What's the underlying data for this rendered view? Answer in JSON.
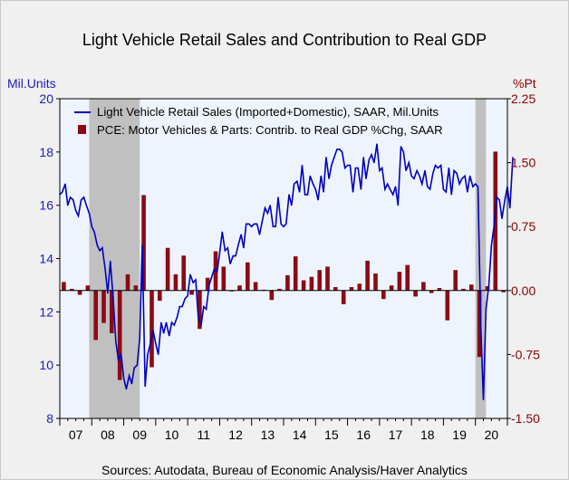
{
  "title": "Light Vehicle Retail Sales and Contribution to Real GDP",
  "source": "Sources:  Autodata, Bureau of Economic Analysis/Haver Analytics",
  "chart_data": {
    "type": "line+bar",
    "title": "Light Vehicle Retail Sales and Contribution to Real GDP",
    "left_axis": {
      "unit": "Mil.Units",
      "ylim": [
        8,
        20
      ],
      "ticks": [
        "8",
        "10",
        "12",
        "14",
        "16",
        "18",
        "20"
      ],
      "color": "#1c1cc0"
    },
    "right_axis": {
      "unit": "%Pt",
      "ylim": [
        -1.5,
        2.25
      ],
      "ticks": [
        "-1.50",
        "-0.75",
        "0.00",
        "0.75",
        "1.50",
        "2.25"
      ],
      "color": "#8b0000"
    },
    "x_ticks": [
      "07",
      "08",
      "09",
      "10",
      "11",
      "12",
      "13",
      "14",
      "15",
      "16",
      "17",
      "18",
      "19",
      "20"
    ],
    "x_range": [
      2007.0,
      2021.0
    ],
    "legend": {
      "placement": "top-left",
      "items": [
        {
          "label": "Light Vehicle Retail Sales (Imported+Domestic), SAAR, Mil.Units",
          "color": "#0000c0",
          "kind": "line"
        },
        {
          "label": "PCE: Motor Vehicles & Parts: Contrib. to Real GDP %Chg, SAAR",
          "color": "#8b0a14",
          "kind": "bar"
        }
      ]
    },
    "recessions": [
      [
        2007.92,
        2009.5
      ],
      [
        2020.0,
        2020.33
      ]
    ],
    "series": [
      {
        "name": "Light Vehicle Retail Sales (Imported+Domestic), SAAR, Mil.Units",
        "axis": "left",
        "color": "#0000c0",
        "points": [
          [
            2007.0,
            16.4
          ],
          [
            2007.08,
            16.5
          ],
          [
            2007.17,
            16.8
          ],
          [
            2007.25,
            16.0
          ],
          [
            2007.33,
            16.3
          ],
          [
            2007.42,
            16.2
          ],
          [
            2007.5,
            15.8
          ],
          [
            2007.58,
            15.6
          ],
          [
            2007.67,
            16.2
          ],
          [
            2007.75,
            16.3
          ],
          [
            2007.83,
            16.0
          ],
          [
            2007.92,
            15.7
          ],
          [
            2008.0,
            15.2
          ],
          [
            2008.08,
            15.0
          ],
          [
            2008.17,
            14.5
          ],
          [
            2008.25,
            14.3
          ],
          [
            2008.33,
            14.4
          ],
          [
            2008.42,
            13.6
          ],
          [
            2008.5,
            12.7
          ],
          [
            2008.58,
            13.9
          ],
          [
            2008.67,
            12.5
          ],
          [
            2008.75,
            10.9
          ],
          [
            2008.83,
            10.2
          ],
          [
            2008.92,
            10.4
          ],
          [
            2009.0,
            9.5
          ],
          [
            2009.08,
            9.1
          ],
          [
            2009.17,
            9.6
          ],
          [
            2009.25,
            9.3
          ],
          [
            2009.33,
            9.9
          ],
          [
            2009.42,
            10.0
          ],
          [
            2009.5,
            11.0
          ],
          [
            2009.58,
            14.5
          ],
          [
            2009.67,
            9.2
          ],
          [
            2009.75,
            10.4
          ],
          [
            2009.83,
            10.8
          ],
          [
            2009.92,
            11.3
          ],
          [
            2010.0,
            10.8
          ],
          [
            2010.08,
            10.4
          ],
          [
            2010.17,
            11.6
          ],
          [
            2010.25,
            11.2
          ],
          [
            2010.33,
            11.6
          ],
          [
            2010.42,
            11.1
          ],
          [
            2010.5,
            11.6
          ],
          [
            2010.58,
            11.5
          ],
          [
            2010.67,
            11.8
          ],
          [
            2010.75,
            12.2
          ],
          [
            2010.83,
            12.2
          ],
          [
            2010.92,
            12.5
          ],
          [
            2011.0,
            12.6
          ],
          [
            2011.08,
            13.4
          ],
          [
            2011.17,
            13.1
          ],
          [
            2011.25,
            13.2
          ],
          [
            2011.33,
            11.8
          ],
          [
            2011.42,
            11.5
          ],
          [
            2011.5,
            12.2
          ],
          [
            2011.58,
            12.1
          ],
          [
            2011.67,
            13.0
          ],
          [
            2011.75,
            13.3
          ],
          [
            2011.83,
            13.6
          ],
          [
            2011.92,
            13.5
          ],
          [
            2012.0,
            14.2
          ],
          [
            2012.08,
            15.0
          ],
          [
            2012.17,
            14.3
          ],
          [
            2012.25,
            14.4
          ],
          [
            2012.33,
            13.8
          ],
          [
            2012.42,
            14.1
          ],
          [
            2012.5,
            14.1
          ],
          [
            2012.58,
            14.5
          ],
          [
            2012.67,
            14.9
          ],
          [
            2012.75,
            14.4
          ],
          [
            2012.83,
            15.3
          ],
          [
            2012.92,
            15.3
          ],
          [
            2013.0,
            15.2
          ],
          [
            2013.08,
            15.3
          ],
          [
            2013.17,
            15.3
          ],
          [
            2013.25,
            14.9
          ],
          [
            2013.33,
            15.4
          ],
          [
            2013.42,
            15.9
          ],
          [
            2013.5,
            15.7
          ],
          [
            2013.58,
            16.0
          ],
          [
            2013.67,
            15.2
          ],
          [
            2013.75,
            15.2
          ],
          [
            2013.83,
            16.3
          ],
          [
            2013.92,
            15.3
          ],
          [
            2014.0,
            15.2
          ],
          [
            2014.08,
            15.3
          ],
          [
            2014.17,
            16.4
          ],
          [
            2014.25,
            16.0
          ],
          [
            2014.33,
            16.8
          ],
          [
            2014.42,
            16.9
          ],
          [
            2014.5,
            16.5
          ],
          [
            2014.58,
            17.5
          ],
          [
            2014.67,
            16.4
          ],
          [
            2014.75,
            16.4
          ],
          [
            2014.83,
            17.1
          ],
          [
            2014.92,
            16.8
          ],
          [
            2015.0,
            16.6
          ],
          [
            2015.08,
            16.2
          ],
          [
            2015.17,
            17.1
          ],
          [
            2015.25,
            16.5
          ],
          [
            2015.33,
            17.8
          ],
          [
            2015.42,
            17.0
          ],
          [
            2015.5,
            17.5
          ],
          [
            2015.58,
            17.8
          ],
          [
            2015.67,
            18.1
          ],
          [
            2015.75,
            18.1
          ],
          [
            2015.83,
            18.0
          ],
          [
            2015.92,
            17.4
          ],
          [
            2016.0,
            17.5
          ],
          [
            2016.08,
            17.5
          ],
          [
            2016.17,
            16.5
          ],
          [
            2016.25,
            17.4
          ],
          [
            2016.33,
            17.4
          ],
          [
            2016.42,
            16.6
          ],
          [
            2016.5,
            17.8
          ],
          [
            2016.58,
            17.0
          ],
          [
            2016.67,
            17.7
          ],
          [
            2016.75,
            17.9
          ],
          [
            2016.83,
            17.6
          ],
          [
            2016.92,
            18.3
          ],
          [
            2017.0,
            17.3
          ],
          [
            2017.08,
            17.4
          ],
          [
            2017.17,
            16.6
          ],
          [
            2017.25,
            16.8
          ],
          [
            2017.33,
            16.6
          ],
          [
            2017.42,
            16.4
          ],
          [
            2017.5,
            16.7
          ],
          [
            2017.58,
            16.0
          ],
          [
            2017.67,
            18.2
          ],
          [
            2017.75,
            18.0
          ],
          [
            2017.83,
            17.3
          ],
          [
            2017.92,
            17.6
          ],
          [
            2018.0,
            17.1
          ],
          [
            2018.08,
            17.0
          ],
          [
            2018.17,
            17.3
          ],
          [
            2018.25,
            17.1
          ],
          [
            2018.33,
            16.8
          ],
          [
            2018.42,
            17.3
          ],
          [
            2018.5,
            16.7
          ],
          [
            2018.58,
            16.6
          ],
          [
            2018.67,
            17.2
          ],
          [
            2018.75,
            17.5
          ],
          [
            2018.83,
            17.4
          ],
          [
            2018.92,
            17.5
          ],
          [
            2019.0,
            16.6
          ],
          [
            2019.08,
            16.5
          ],
          [
            2019.17,
            17.4
          ],
          [
            2019.25,
            16.4
          ],
          [
            2019.33,
            17.3
          ],
          [
            2019.42,
            17.2
          ],
          [
            2019.5,
            16.8
          ],
          [
            2019.58,
            17.0
          ],
          [
            2019.67,
            17.1
          ],
          [
            2019.75,
            16.5
          ],
          [
            2019.83,
            17.1
          ],
          [
            2019.92,
            16.7
          ],
          [
            2020.0,
            16.8
          ],
          [
            2020.08,
            16.7
          ],
          [
            2020.17,
            11.4
          ],
          [
            2020.25,
            8.7
          ],
          [
            2020.33,
            12.1
          ],
          [
            2020.42,
            13.0
          ],
          [
            2020.5,
            14.5
          ],
          [
            2020.58,
            15.2
          ],
          [
            2020.67,
            16.3
          ],
          [
            2020.75,
            16.2
          ],
          [
            2020.83,
            15.5
          ],
          [
            2020.92,
            16.2
          ],
          [
            2021.0,
            16.7
          ],
          [
            2021.08,
            15.9
          ],
          [
            2021.17,
            17.8
          ]
        ]
      },
      {
        "name": "PCE: Motor Vehicles & Parts: Contrib. to Real GDP %Chg, SAAR",
        "axis": "right",
        "color": "#8b0a14",
        "bar_width_years": 0.13,
        "points": [
          [
            2007.125,
            0.1
          ],
          [
            2007.375,
            0.02
          ],
          [
            2007.625,
            -0.05
          ],
          [
            2007.875,
            0.06
          ],
          [
            2008.125,
            -0.58
          ],
          [
            2008.375,
            -0.38
          ],
          [
            2008.625,
            -0.5
          ],
          [
            2008.875,
            -1.05
          ],
          [
            2009.125,
            0.19
          ],
          [
            2009.375,
            0.06
          ],
          [
            2009.625,
            1.12
          ],
          [
            2009.875,
            -0.9
          ],
          [
            2010.125,
            -0.12
          ],
          [
            2010.375,
            0.5
          ],
          [
            2010.625,
            0.19
          ],
          [
            2010.875,
            0.41
          ],
          [
            2011.125,
            -0.05
          ],
          [
            2011.375,
            -0.45
          ],
          [
            2011.625,
            0.15
          ],
          [
            2011.875,
            0.46
          ],
          [
            2012.125,
            0.28
          ],
          [
            2012.375,
            -0.01
          ],
          [
            2012.625,
            0.06
          ],
          [
            2012.875,
            0.33
          ],
          [
            2013.125,
            0.1
          ],
          [
            2013.375,
            0.01
          ],
          [
            2013.625,
            -0.11
          ],
          [
            2013.875,
            0.02
          ],
          [
            2014.125,
            0.18
          ],
          [
            2014.375,
            0.4
          ],
          [
            2014.625,
            0.12
          ],
          [
            2014.875,
            0.16
          ],
          [
            2015.125,
            0.24
          ],
          [
            2015.375,
            0.28
          ],
          [
            2015.625,
            0.04
          ],
          [
            2015.875,
            -0.16
          ],
          [
            2016.125,
            0.04
          ],
          [
            2016.375,
            0.08
          ],
          [
            2016.625,
            0.35
          ],
          [
            2016.875,
            0.2
          ],
          [
            2017.125,
            -0.1
          ],
          [
            2017.375,
            0.06
          ],
          [
            2017.625,
            0.22
          ],
          [
            2017.875,
            0.3
          ],
          [
            2018.125,
            -0.07
          ],
          [
            2018.375,
            0.1
          ],
          [
            2018.625,
            -0.03
          ],
          [
            2018.875,
            0.03
          ],
          [
            2019.125,
            -0.35
          ],
          [
            2019.375,
            0.24
          ],
          [
            2019.625,
            0.02
          ],
          [
            2019.875,
            0.07
          ],
          [
            2020.125,
            -0.78
          ],
          [
            2020.375,
            0.05
          ],
          [
            2020.625,
            1.63
          ],
          [
            2020.875,
            -0.02
          ]
        ]
      }
    ],
    "grid": false
  }
}
